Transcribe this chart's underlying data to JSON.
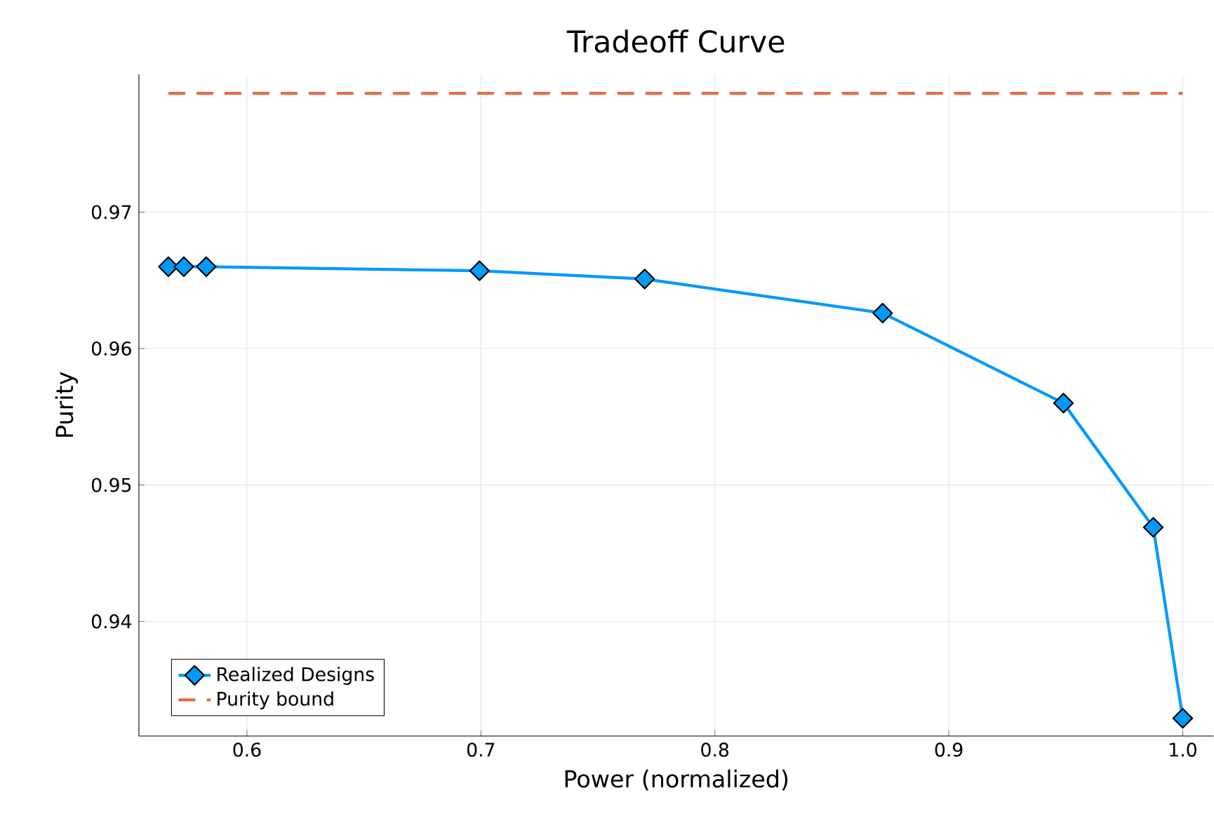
{
  "chart_data": {
    "type": "line",
    "title": "Tradeoff Curve",
    "xlabel": "Power (normalized)",
    "ylabel": "Purity",
    "series": [
      {
        "name": "Realized Designs",
        "color": "#009afa",
        "marker": "diamond",
        "line_style": "solid",
        "x": [
          0.5664,
          0.573,
          0.5826,
          0.6994,
          0.77,
          0.8717,
          0.949,
          0.9874,
          1.0
        ],
        "values": [
          0.966,
          0.966,
          0.966,
          0.9657,
          0.9651,
          0.9626,
          0.956,
          0.9469,
          0.9329
        ]
      },
      {
        "name": "Purity bound",
        "color": "#e26f46",
        "marker": "none",
        "line_style": "dashed",
        "x": [
          0.5664,
          1.0
        ],
        "values": [
          0.9787,
          0.9787
        ]
      }
    ],
    "xlim": [
      0.5538,
      1.0132
    ],
    "ylim": [
      0.9316,
      0.9801
    ],
    "xticks": [
      0.6,
      0.7,
      0.8,
      0.9,
      {
        "value": 1.0,
        "label": "1.0"
      }
    ],
    "yticks": [
      0.94,
      0.95,
      0.96,
      0.97
    ],
    "grid": true,
    "legend": "bottom left"
  }
}
